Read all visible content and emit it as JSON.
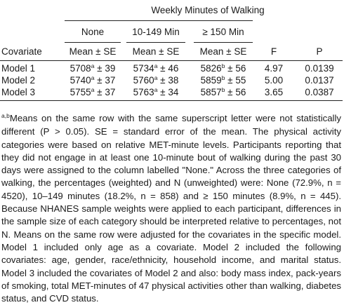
{
  "table": {
    "title": "Weekly Minutes of Walking",
    "group_headers": [
      "None",
      "10-149 Min",
      "≥ 150 Min"
    ],
    "column_headers": [
      "Covariate",
      "Mean ± SE",
      "Mean ± SE",
      "Mean ± SE",
      "F",
      "P"
    ],
    "rows": [
      {
        "covariate": "Model 1",
        "none": "5708",
        "none_sup": "a",
        "none_se": " ± 39",
        "mid": "5734",
        "mid_sup": "a",
        "mid_se": " ± 46",
        "high": "5826",
        "high_sup": "b",
        "high_se": " ± 56",
        "f": "4.97",
        "p": "0.0139"
      },
      {
        "covariate": "Model 2",
        "none": "5740",
        "none_sup": "a",
        "none_se": " ± 37",
        "mid": "5760",
        "mid_sup": "a",
        "mid_se": " ± 38",
        "high": "5859",
        "high_sup": "b",
        "high_se": " ± 55",
        "f": "5.00",
        "p": "0.0137"
      },
      {
        "covariate": "Model 3",
        "none": "5755",
        "none_sup": "a",
        "none_se": " ± 37",
        "mid": "5763",
        "mid_sup": "a",
        "mid_se": " ± 34",
        "high": "5857",
        "high_sup": "b",
        "high_se": " ± 56",
        "f": "3.65",
        "p": "0.0387"
      }
    ]
  },
  "footnote": {
    "marker": "a,b",
    "text": "Means on the same row with the same superscript letter were not statistically different (P > 0.05). SE = standard error of the mean. The physical activity categories were based on relative MET-minute levels. Participants reporting that they did not engage in at least one 10-minute bout of walking during the past 30 days were assigned to the column labelled \"None.\" Across the three categories of walking, the percentages (weighted) and N (unweighted) were: None (72.9%, n = 4520), 10–149 minutes (18.2%, n = 858) and ≥ 150 minutes (8.9%, n = 445). Because NHANES sample weights were applied to each participant, differences in the sample size of each category should be interpreted relative to percentages, not N. Means on the same row were adjusted for the covariates in the specific model. Model 1 included only age as a covariate. Model 2 included the following covariates: age, gender, race/ethnicity, household income, and marital status. Model 3 included the covariates of Model 2 and also: body mass index, pack-years of smoking, total MET-minutes of 47 physical activities other than walking, diabetes status, and CVD status."
  }
}
